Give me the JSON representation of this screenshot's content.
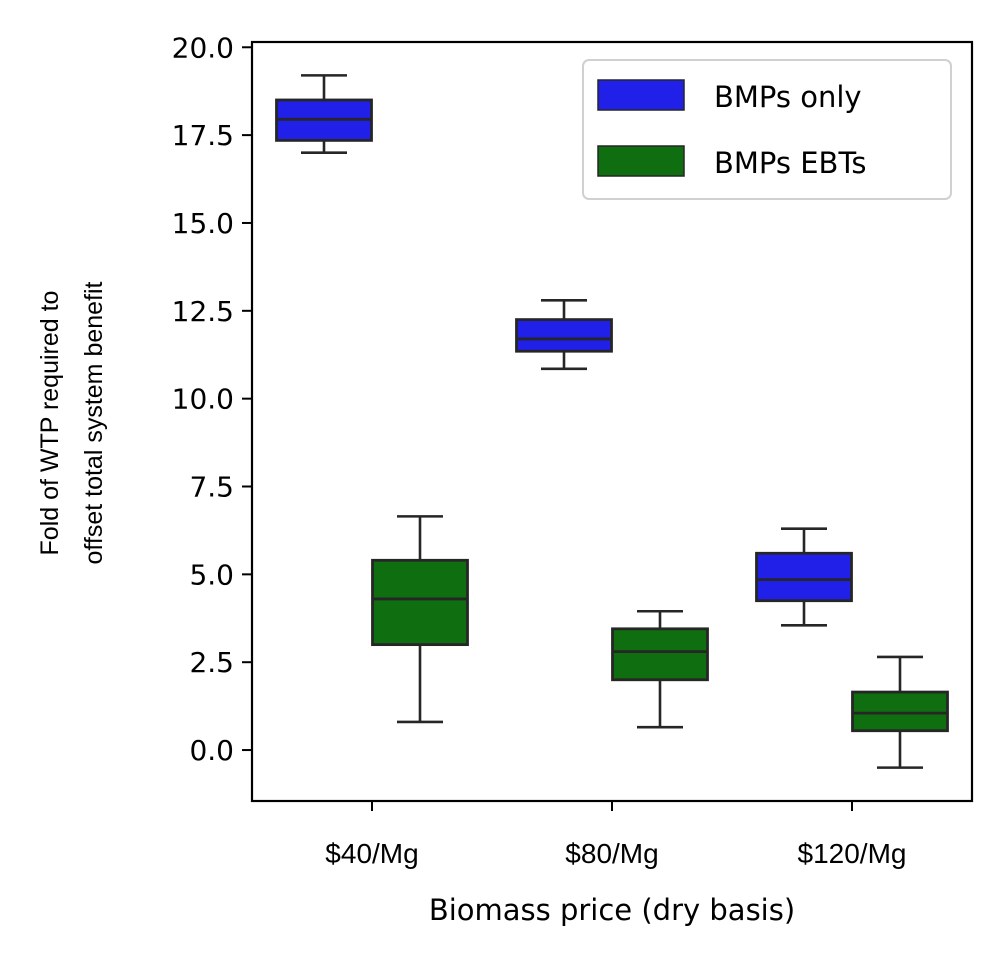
{
  "chart_data": {
    "type": "box",
    "categories": [
      "$40/Mg",
      "$80/Mg",
      "$120/Mg"
    ],
    "xlabel": "Biomass price (dry basis)",
    "ylabel_lines": [
      "Fold of WTP required to",
      "offset total system benefit"
    ],
    "ylim": [
      -1.45,
      20.15
    ],
    "yticks": [
      0.0,
      2.5,
      5.0,
      7.5,
      10.0,
      12.5,
      15.0,
      17.5,
      20.0
    ],
    "ytick_labels": [
      "0.0",
      "2.5",
      "5.0",
      "7.5",
      "10.0",
      "12.5",
      "15.0",
      "17.5",
      "20.0"
    ],
    "legend_position": "top-right",
    "grid": false,
    "series": [
      {
        "name": "BMPs only",
        "color": "#2020e8",
        "boxes": [
          {
            "whisker_low": 17.0,
            "q1": 17.35,
            "median": 17.95,
            "q3": 18.5,
            "whisker_high": 19.2
          },
          {
            "whisker_low": 10.85,
            "q1": 11.35,
            "median": 11.7,
            "q3": 12.25,
            "whisker_high": 12.8
          },
          {
            "whisker_low": 3.55,
            "q1": 4.25,
            "median": 4.85,
            "q3": 5.6,
            "whisker_high": 6.3
          }
        ]
      },
      {
        "name": "BMPs EBTs",
        "color": "#0f6e0f",
        "boxes": [
          {
            "whisker_low": 0.8,
            "q1": 3.0,
            "median": 4.3,
            "q3": 5.4,
            "whisker_high": 6.65
          },
          {
            "whisker_low": 0.65,
            "q1": 2.0,
            "median": 2.8,
            "q3": 3.45,
            "whisker_high": 3.95
          },
          {
            "whisker_low": -0.5,
            "q1": 0.55,
            "median": 1.05,
            "q3": 1.65,
            "whisker_high": 2.65
          }
        ]
      }
    ]
  }
}
